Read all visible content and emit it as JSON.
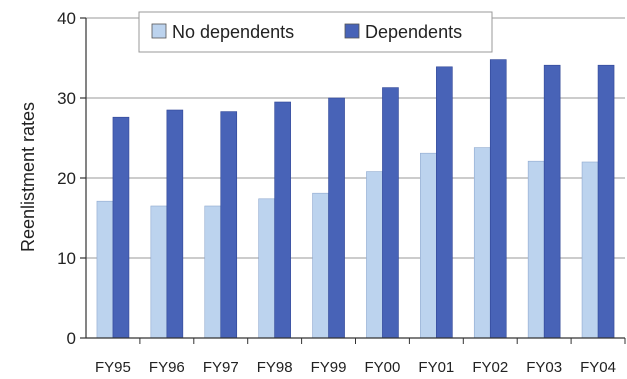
{
  "chart_data": {
    "type": "bar",
    "title": "",
    "xlabel": "",
    "ylabel": "Reenlistment rates",
    "ylim": [
      0,
      40
    ],
    "yticks": [
      0,
      10,
      20,
      30,
      40
    ],
    "grid": true,
    "legend_position": "top-right",
    "categories": [
      "FY95",
      "FY96",
      "FY97",
      "FY98",
      "FY99",
      "FY00",
      "FY01",
      "FY02",
      "FY03",
      "FY04"
    ],
    "series": [
      {
        "name": "No dependents",
        "color": "#bcd3ee",
        "values": [
          17.1,
          16.5,
          16.5,
          17.4,
          18.1,
          20.8,
          23.1,
          23.8,
          22.1,
          22.0
        ]
      },
      {
        "name": "Dependents",
        "color": "#4863b7",
        "values": [
          27.6,
          28.5,
          28.3,
          29.5,
          30.0,
          31.3,
          33.9,
          34.8,
          34.1,
          34.1
        ]
      }
    ]
  }
}
